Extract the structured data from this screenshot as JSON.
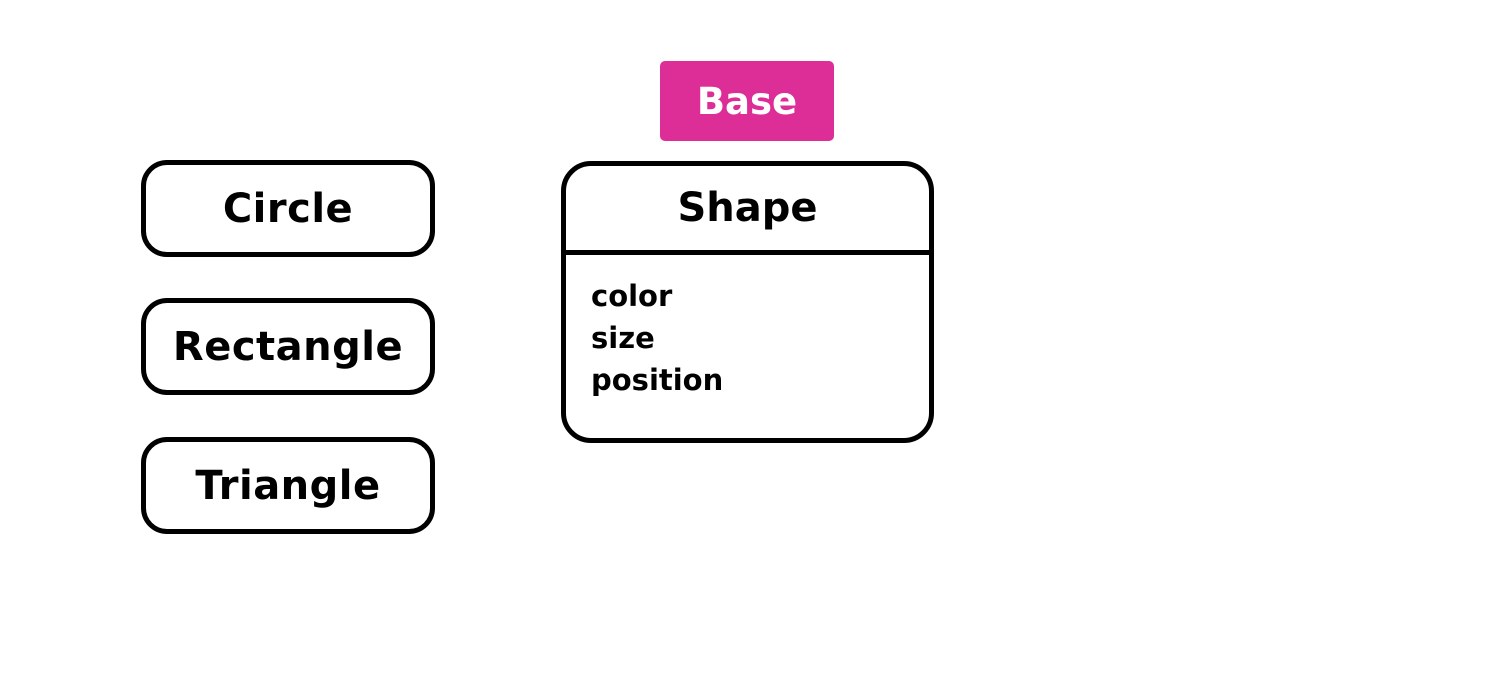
{
  "badge": {
    "label": "Base",
    "color": "#dc2e96"
  },
  "subclasses": [
    {
      "label": "Circle"
    },
    {
      "label": "Rectangle"
    },
    {
      "label": "Triangle"
    }
  ],
  "class_box": {
    "title": "Shape",
    "attributes": [
      "color",
      "size",
      "position"
    ]
  }
}
